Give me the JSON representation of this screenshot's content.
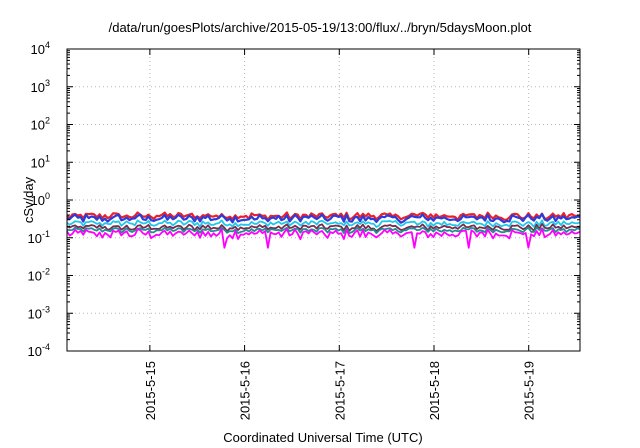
{
  "chart_data": {
    "type": "line",
    "title": "/data/run/goesPlots/archive/2015-05-19/13:00/flux/../bryn/5daysMoon.plot",
    "xlabel": "Coordinated Universal Time (UTC)",
    "ylabel": "cSv/day",
    "yscale": "log",
    "ylim": [
      0.0001,
      10000
    ],
    "xlim": [
      2015.0514,
      2015.05196
    ],
    "x_start": "2015-05-14 03:00",
    "x_end": "2015-05-19 13:00",
    "x_ticks": [
      "2015-5-15",
      "2015-5-16",
      "2015-5-17",
      "2015-5-18",
      "2015-5-19"
    ],
    "y_ticks": [
      {
        "base": "10",
        "exp": "-4"
      },
      {
        "base": "10",
        "exp": "-3"
      },
      {
        "base": "10",
        "exp": "-2"
      },
      {
        "base": "10",
        "exp": "-1"
      },
      {
        "base": "10",
        "exp": "0"
      },
      {
        "base": "10",
        "exp": "1"
      },
      {
        "base": "10",
        "exp": "2"
      },
      {
        "base": "10",
        "exp": "3"
      },
      {
        "base": "10",
        "exp": "4"
      }
    ],
    "grid": true,
    "series": [
      {
        "color": "#e8212b",
        "level": 0.38,
        "amplitude": 0.09
      },
      {
        "color": "#2b3bdc",
        "level": 0.33,
        "amplitude": 0.09
      },
      {
        "color": "#21c7e8",
        "level": 0.24,
        "amplitude": 0.05
      },
      {
        "color": "#7b2a4f",
        "level": 0.19,
        "amplitude": 0.04
      },
      {
        "color": "#1f8f8f",
        "level": 0.16,
        "amplitude": 0.03
      },
      {
        "color": "#ff00ff",
        "level": 0.13,
        "amplitude": 0.04
      }
    ]
  }
}
